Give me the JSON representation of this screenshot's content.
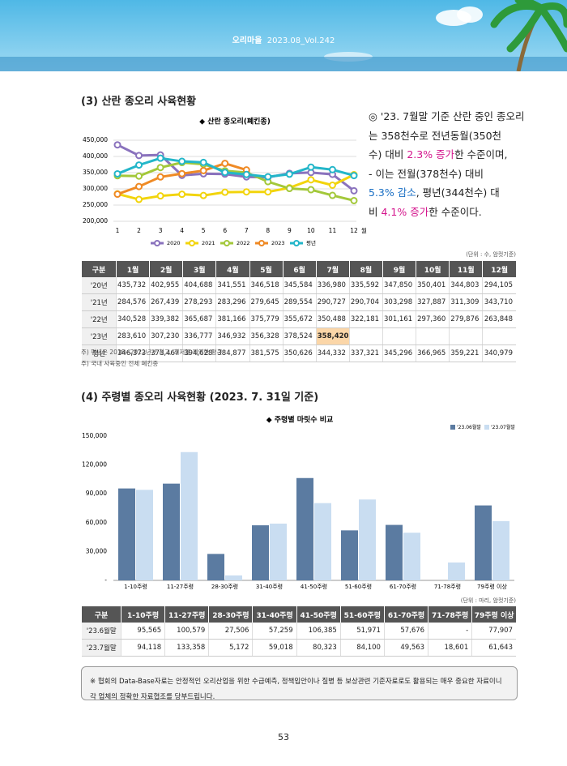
{
  "header": {
    "magazine": "오리마을",
    "issue": "2023.08_Vol.242"
  },
  "section1": {
    "title": "(3) 산란 종오리 사육현황",
    "paragraph": [
      [
        {
          "text": "◎ '23. 7월말 기준 산란 중인 종오리"
        }
      ],
      [
        {
          "text": "는 358천수로  전년동월(350천"
        }
      ],
      [
        {
          "text": "수) 대비 "
        },
        {
          "text": "2.3% 증가",
          "color": "#d4148c"
        },
        {
          "text": "한 수준이며,"
        }
      ],
      [
        {
          "text": "- 이는 전월(378천수) 대비"
        }
      ],
      [
        {
          "text": "5.3% 감소",
          "color": "#1a6fc4"
        },
        {
          "text": ", 평년(344천수) 대"
        }
      ],
      [
        {
          "text": "비 "
        },
        {
          "text": "4.1% 증가",
          "color": "#d4148c"
        },
        {
          "text": "한 수준이다."
        }
      ]
    ],
    "unit": "(단위 : 수, 암컷기준)",
    "table": {
      "header": [
        "구분",
        "1월",
        "2월",
        "3월",
        "4월",
        "5월",
        "6월",
        "7월",
        "8월",
        "9월",
        "10월",
        "11월",
        "12월"
      ],
      "rows": [
        [
          "'20년",
          "435,732",
          "402,955",
          "404,688",
          "341,551",
          "346,518",
          "345,584",
          "336,980",
          "335,592",
          "347,850",
          "350,401",
          "344,803",
          "294,105"
        ],
        [
          "'21년",
          "284,576",
          "267,439",
          "278,293",
          "283,296",
          "279,645",
          "289,554",
          "290,727",
          "290,704",
          "303,298",
          "327,887",
          "311,309",
          "343,710"
        ],
        [
          "'22년",
          "340,528",
          "339,382",
          "365,687",
          "381,166",
          "375,779",
          "355,672",
          "350,488",
          "322,181",
          "301,161",
          "297,360",
          "279,876",
          "263,848"
        ],
        [
          "'23년",
          "283,610",
          "307,230",
          "336,777",
          "346,932",
          "356,328",
          "378,524",
          "358,420"
        ],
        [
          "평년",
          "346,373",
          "373,467",
          "394,628",
          "384,877",
          "381,575",
          "350,626",
          "344,332",
          "337,321",
          "345,296",
          "366,965",
          "359,221",
          "340,979"
        ]
      ],
      "highlight_cell": [
        3,
        7
      ]
    },
    "notes": [
      "주) 평년은 2018~2022년간 최고, 최저를 제외한 평균",
      "주) 국내 사육중인 전체 폐킨종"
    ]
  },
  "section2": {
    "title": "(4) 주령별 종오리 사육현황 (2023. 7. 31일 기준)",
    "unit": "(단위 : 마리, 암컷기준)",
    "table": {
      "header": [
        "구분",
        "1-10주령",
        "11-27주령",
        "28-30주령",
        "31-40주령",
        "41-50주령",
        "51-60주령",
        "61-70주령",
        "71-78주령",
        "79주령 이상"
      ],
      "rows": [
        [
          "'23.6월말",
          "95,565",
          "100,579",
          "27,506",
          "57,259",
          "106,385",
          "51,971",
          "57,676",
          "-",
          "77,907"
        ],
        [
          "'23.7월말",
          "94,118",
          "133,358",
          "5,172",
          "59,018",
          "80,323",
          "84,100",
          "49,563",
          "18,601",
          "61,643"
        ]
      ]
    }
  },
  "footnote": "※ 협회의 Data-Base자료는 안정적인 오리산업을 위한 수급예측, 정책입안이나 질병 등 보상관련 기준자료로도 활용되는 매우 중요한 자료이니 각 업체의 정확한 자료협조를 당부드립니다.",
  "page_number": "53",
  "chart_data": [
    {
      "type": "line",
      "title": "◆ 산란 종오리(폐킨종)",
      "categories": [
        "1",
        "2",
        "3",
        "4",
        "5",
        "6",
        "7",
        "8",
        "9",
        "10",
        "11",
        "12"
      ],
      "x_unit": "월",
      "ylim": [
        200000,
        450000
      ],
      "yticks": [
        {
          "value": 200000,
          "label": "200,000"
        },
        {
          "value": 250000,
          "label": "250,000"
        },
        {
          "value": 300000,
          "label": "300,000"
        },
        {
          "value": 350000,
          "label": "350,000"
        },
        {
          "value": 400000,
          "label": "400,000"
        },
        {
          "value": 450000,
          "label": "450,000"
        }
      ],
      "grid": true,
      "legend": "bottom",
      "series": [
        {
          "name": "2020",
          "color": "#8a72bd",
          "values": [
            435732,
            402955,
            404688,
            341551,
            346518,
            345584,
            336980,
            335592,
            347850,
            350401,
            344803,
            294105
          ]
        },
        {
          "name": "2021",
          "color": "#f2d40c",
          "values": [
            284576,
            267439,
            278293,
            283296,
            279645,
            289554,
            290727,
            290704,
            303298,
            327887,
            311309,
            343710
          ]
        },
        {
          "name": "2022",
          "color": "#a3c83a",
          "values": [
            340528,
            339382,
            365687,
            381166,
            375779,
            355672,
            350488,
            322181,
            301161,
            297360,
            279876,
            263848
          ]
        },
        {
          "name": "2023",
          "color": "#ef8a25",
          "values": [
            283610,
            307230,
            336777,
            346932,
            356328,
            378524,
            358420,
            null,
            null,
            null,
            null,
            null
          ]
        },
        {
          "name": "평년",
          "color": "#23b6c9",
          "values": [
            346373,
            373467,
            394628,
            384877,
            381575,
            350626,
            344332,
            337321,
            345296,
            366965,
            359221,
            340979
          ]
        }
      ]
    },
    {
      "type": "bar",
      "title": "◆ 주령별 마릿수 비교",
      "categories": [
        "1-10주령",
        "11-27주령",
        "28-30주령",
        "31-40주령",
        "41-50주령",
        "51-60주령",
        "61-70주령",
        "71-78주령",
        "79주령 이상"
      ],
      "ylim": [
        0,
        150000
      ],
      "yticks": [
        {
          "value": 0,
          "label": "-"
        },
        {
          "value": 30000,
          "label": "30,000"
        },
        {
          "value": 60000,
          "label": "60,000"
        },
        {
          "value": 90000,
          "label": "90,000"
        },
        {
          "value": 120000,
          "label": "120,000"
        },
        {
          "value": 150000,
          "label": "150,000"
        }
      ],
      "grid": false,
      "legend": "top-right",
      "series": [
        {
          "name": "'23.06월말",
          "color": "#5b7ba1",
          "values": [
            95565,
            100579,
            27506,
            57259,
            106385,
            51971,
            57676,
            null,
            77907
          ]
        },
        {
          "name": "'23.07월말",
          "color": "#c9ddf1",
          "values": [
            94118,
            133358,
            5172,
            59018,
            80323,
            84100,
            49563,
            18601,
            61643
          ]
        }
      ]
    }
  ]
}
